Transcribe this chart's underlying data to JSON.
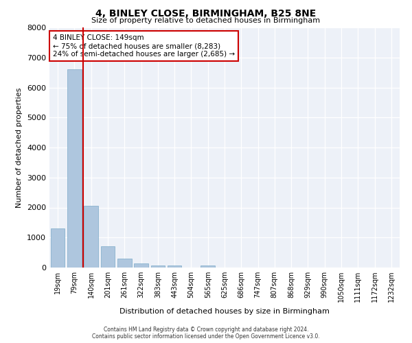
{
  "title": "4, BINLEY CLOSE, BIRMINGHAM, B25 8NE",
  "subtitle": "Size of property relative to detached houses in Birmingham",
  "xlabel": "Distribution of detached houses by size in Birmingham",
  "ylabel": "Number of detached properties",
  "categories": [
    "19sqm",
    "79sqm",
    "140sqm",
    "201sqm",
    "261sqm",
    "322sqm",
    "383sqm",
    "443sqm",
    "504sqm",
    "565sqm",
    "625sqm",
    "686sqm",
    "747sqm",
    "807sqm",
    "868sqm",
    "929sqm",
    "990sqm",
    "1050sqm",
    "1111sqm",
    "1172sqm",
    "1232sqm"
  ],
  "values": [
    1300,
    6600,
    2050,
    700,
    300,
    130,
    80,
    80,
    0,
    80,
    0,
    0,
    0,
    0,
    0,
    0,
    0,
    0,
    0,
    0,
    0
  ],
  "bar_color": "#aec6de",
  "bar_edgecolor": "#7aaac8",
  "vline_x_index": 2,
  "vline_color": "#cc0000",
  "annotation_text": "4 BINLEY CLOSE: 149sqm\n← 75% of detached houses are smaller (8,283)\n24% of semi-detached houses are larger (2,685) →",
  "annotation_box_edgecolor": "#cc0000",
  "annotation_box_facecolor": "white",
  "ylim": [
    0,
    8000
  ],
  "yticks": [
    0,
    1000,
    2000,
    3000,
    4000,
    5000,
    6000,
    7000,
    8000
  ],
  "bg_color": "#edf1f8",
  "grid_color": "white",
  "footer_line1": "Contains HM Land Registry data © Crown copyright and database right 2024.",
  "footer_line2": "Contains public sector information licensed under the Open Government Licence v3.0."
}
